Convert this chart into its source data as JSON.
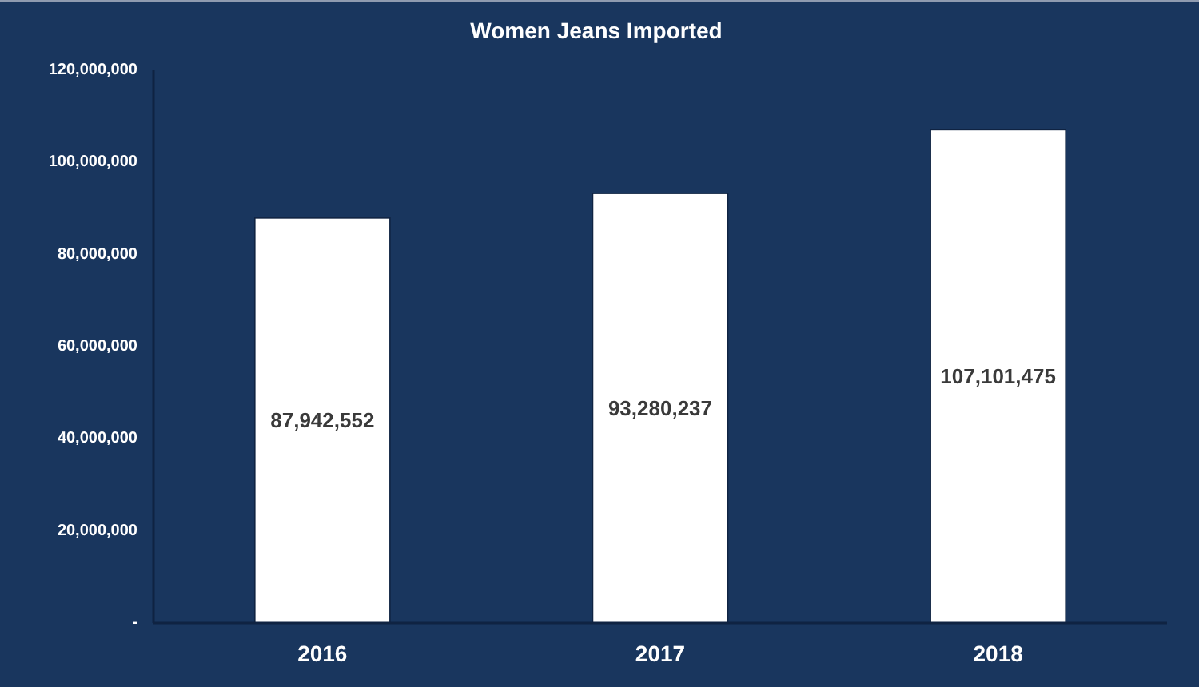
{
  "chart_data": {
    "type": "bar",
    "title": "Women Jeans Imported",
    "categories": [
      "2016",
      "2017",
      "2018"
    ],
    "values": [
      87942552,
      93280237,
      107101475
    ],
    "color": "#ffffff",
    "value_labels": [
      "87,942,552",
      "93,280,237",
      "107,101,475"
    ],
    "ylim": [
      0,
      120000000
    ],
    "yticks": [
      {
        "value": 0,
        "label": "-"
      },
      {
        "value": 20000000,
        "label": "20,000,000"
      },
      {
        "value": 40000000,
        "label": "40,000,000"
      },
      {
        "value": 60000000,
        "label": "60,000,000"
      },
      {
        "value": 80000000,
        "label": "80,000,000"
      },
      {
        "value": 100000000,
        "label": "100,000,000"
      },
      {
        "value": 120000000,
        "label": "120,000,000"
      }
    ]
  }
}
